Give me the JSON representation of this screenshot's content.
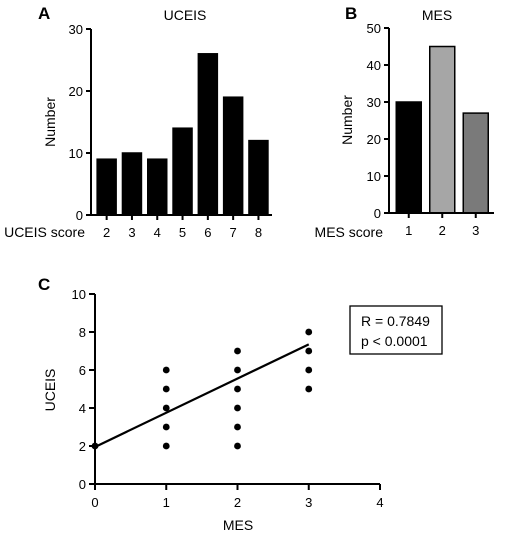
{
  "panel_labels": {
    "a": "A",
    "b": "B",
    "c": "C"
  },
  "chart_data": [
    {
      "type": "bar",
      "title": "UCEIS",
      "xlabel": "UCEIS score",
      "ylabel": "Number",
      "categories": [
        "2",
        "3",
        "4",
        "5",
        "6",
        "7",
        "8"
      ],
      "values": [
        9,
        10,
        9,
        14,
        26,
        19,
        12
      ],
      "ylim": [
        0,
        30
      ],
      "yticks": [
        0,
        10,
        20,
        30
      ],
      "colors": [
        "#000000"
      ],
      "grid": false
    },
    {
      "type": "bar",
      "title": "MES",
      "xlabel": "MES score",
      "ylabel": "Number",
      "categories": [
        "1",
        "2",
        "3"
      ],
      "values": [
        30,
        45,
        27
      ],
      "ylim": [
        0,
        50
      ],
      "yticks": [
        0,
        10,
        20,
        30,
        40,
        50
      ],
      "colors": [
        "#000000",
        "#a6a6a6",
        "#7a7a7a"
      ],
      "grid": false
    },
    {
      "type": "scatter",
      "title": "",
      "xlabel": "MES",
      "ylabel": "UCEIS",
      "xlim": [
        0,
        4
      ],
      "ylim": [
        0,
        10
      ],
      "xticks": [
        0,
        1,
        2,
        3,
        4
      ],
      "yticks": [
        0,
        2,
        4,
        6,
        8,
        10
      ],
      "points": [
        {
          "x": 0,
          "y": 2
        },
        {
          "x": 1,
          "y": 2
        },
        {
          "x": 1,
          "y": 3
        },
        {
          "x": 1,
          "y": 4
        },
        {
          "x": 1,
          "y": 5
        },
        {
          "x": 1,
          "y": 6
        },
        {
          "x": 2,
          "y": 2
        },
        {
          "x": 2,
          "y": 3
        },
        {
          "x": 2,
          "y": 4
        },
        {
          "x": 2,
          "y": 5
        },
        {
          "x": 2,
          "y": 6
        },
        {
          "x": 2,
          "y": 7
        },
        {
          "x": 3,
          "y": 5
        },
        {
          "x": 3,
          "y": 6
        },
        {
          "x": 3,
          "y": 7
        },
        {
          "x": 3,
          "y": 8
        }
      ],
      "fit_line": {
        "x": [
          0,
          3
        ],
        "y": [
          1.95,
          7.35
        ]
      },
      "annotation": {
        "r_text": "R = 0.7849",
        "p_text": "p < 0.0001",
        "position": "top-right"
      },
      "grid": false
    }
  ]
}
